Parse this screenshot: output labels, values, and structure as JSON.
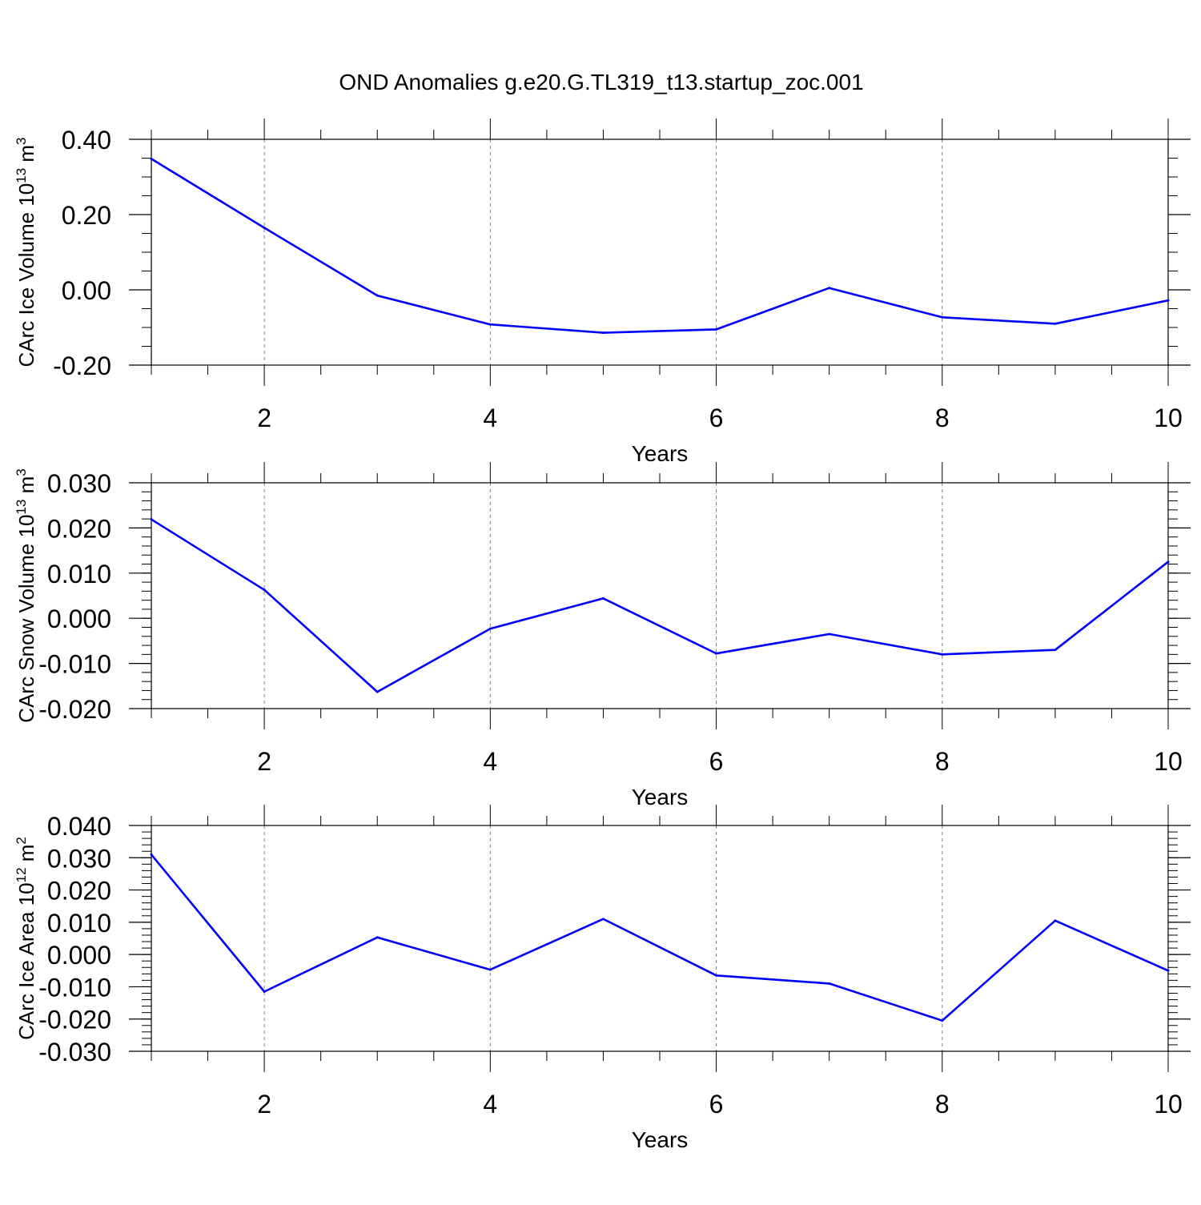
{
  "title": "OND Anomalies g.e20.G.TL319_t13.startup_zoc.001",
  "colors": {
    "line": "#0000ff",
    "frame": "#000000",
    "grid": "#808080"
  },
  "chart_data": [
    {
      "type": "line",
      "title": "OND Anomalies g.e20.G.TL319_t13.startup_zoc.001",
      "xlabel": "Years",
      "ylabel": "CArc Ice Volume 10",
      "ylabel_exp": "13",
      "ylabel_unit": "m",
      "ylabel_unit_exp": "3",
      "x": [
        1,
        2,
        3,
        4,
        5,
        6,
        7,
        8,
        9,
        10
      ],
      "values": [
        0.348,
        0.165,
        -0.015,
        -0.092,
        -0.114,
        -0.105,
        0.005,
        -0.073,
        -0.09,
        -0.028
      ],
      "xlim": [
        1,
        10
      ],
      "ylim": [
        -0.2,
        0.4
      ],
      "xticks": [
        2,
        4,
        6,
        8,
        10
      ],
      "xtick_labels": [
        "2",
        "4",
        "6",
        "8",
        "10"
      ],
      "yticks": [
        -0.2,
        0.0,
        0.2,
        0.4
      ],
      "ytick_labels": [
        "-0.20",
        "0.00",
        "0.20",
        "0.40"
      ],
      "y_minor_step": 0.05,
      "grid": "dashed-vertical"
    },
    {
      "type": "line",
      "xlabel": "Years",
      "ylabel": "CArc Snow Volume 10",
      "ylabel_exp": "13",
      "ylabel_unit": "m",
      "ylabel_unit_exp": "3",
      "x": [
        1,
        2,
        3,
        4,
        5,
        6,
        7,
        8,
        9,
        10
      ],
      "values": [
        0.0219,
        0.0063,
        -0.0163,
        -0.0023,
        0.0044,
        -0.0078,
        -0.0035,
        -0.008,
        -0.007,
        0.0125
      ],
      "xlim": [
        1,
        10
      ],
      "ylim": [
        -0.02,
        0.03
      ],
      "xticks": [
        2,
        4,
        6,
        8,
        10
      ],
      "xtick_labels": [
        "2",
        "4",
        "6",
        "8",
        "10"
      ],
      "yticks": [
        -0.02,
        -0.01,
        0.0,
        0.01,
        0.02,
        0.03
      ],
      "ytick_labels": [
        "-0.020",
        "-0.010",
        "0.000",
        "0.010",
        "0.020",
        "0.030"
      ],
      "y_minor_step": 0.002,
      "grid": "dashed-vertical"
    },
    {
      "type": "line",
      "xlabel": "Years",
      "ylabel": "CArc Ice Area 10",
      "ylabel_exp": "12",
      "ylabel_unit": "m",
      "ylabel_unit_exp": "2",
      "x": [
        1,
        2,
        3,
        4,
        5,
        6,
        7,
        8,
        9,
        10
      ],
      "values": [
        0.031,
        -0.0115,
        0.0053,
        -0.0047,
        0.011,
        -0.0065,
        -0.009,
        -0.0205,
        0.0105,
        -0.005
      ],
      "xlim": [
        1,
        10
      ],
      "ylim": [
        -0.03,
        0.04
      ],
      "xticks": [
        2,
        4,
        6,
        8,
        10
      ],
      "xtick_labels": [
        "2",
        "4",
        "6",
        "8",
        "10"
      ],
      "yticks": [
        -0.03,
        -0.02,
        -0.01,
        0.0,
        0.01,
        0.02,
        0.03,
        0.04
      ],
      "ytick_labels": [
        "-0.030",
        "-0.020",
        "-0.010",
        "0.000",
        "0.010",
        "0.020",
        "0.030",
        "0.040"
      ],
      "y_minor_step": 0.002,
      "grid": "dashed-vertical"
    }
  ]
}
